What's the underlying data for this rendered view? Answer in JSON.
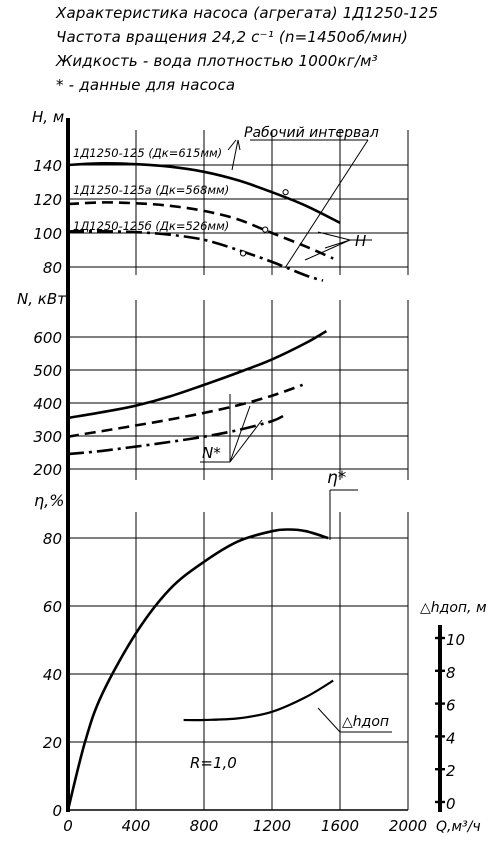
{
  "header": {
    "line1": "Характеристика насоса (агрегата) 1Д1250-125",
    "line2": "Частота вращения 24,2 с⁻¹ (n=1450об/мин)",
    "line3": "Жидкость - вода плотностью 1000кг/м³",
    "line4": "* - данные для насоса"
  },
  "labels": {
    "h_axis": "H, м",
    "n_axis": "N, кВт",
    "eta_axis": "η,%",
    "npsh_axis": "△hдоп, м",
    "x_axis": "Q,м³/ч",
    "work_interval": "Рабочий интервал",
    "curve_H_label": "H",
    "curve_N_label": "N*",
    "curve_eta_label": "η*",
    "curve_npsh_label": "△hдоп",
    "r_label": "R=1,0",
    "series_125": "1Д1250-125 (Дк=615мм)",
    "series_125a": "1Д1250-125а (Дк=568мм)",
    "series_125b": "1Д1250-125б (Дк=526мм)"
  },
  "chart_data": {
    "type": "line",
    "x_unit": "Q, м³/ч",
    "xlim": [
      0,
      2000
    ],
    "x_ticks": [
      "0",
      "400",
      "800",
      "1200",
      "1600",
      "2000"
    ],
    "grid": true,
    "work_interval": [
      1000,
      1600
    ],
    "panels": [
      {
        "quantity": "H, м",
        "ylim": [
          80,
          150
        ],
        "y_ticks": [
          "80",
          "100",
          "120",
          "140"
        ],
        "series": [
          {
            "name": "1Д1250-125 (Дк=615мм)",
            "style": "solid",
            "x": [
              0,
              200,
              400,
              600,
              800,
              1000,
              1200,
              1400,
              1600
            ],
            "y": [
              140,
              141,
              140.5,
              139,
              136,
              131,
              124,
              116,
              106
            ]
          },
          {
            "name": "1Д1250-125а (Дк=568мм)",
            "style": "dashed",
            "x": [
              0,
              200,
              400,
              600,
              800,
              1000,
              1200,
              1400,
              1560
            ],
            "y": [
              117,
              118,
              117.5,
              116,
              113,
              108,
              100,
              92,
              85
            ]
          },
          {
            "name": "1Д1250-125б (Дк=526мм)",
            "style": "dashdot",
            "x": [
              0,
              200,
              400,
              600,
              800,
              1000,
              1200,
              1400,
              1500
            ],
            "y": [
              101,
              101,
              100.5,
              99,
              96,
              90,
              83,
              75,
              72
            ]
          }
        ],
        "markers": [
          {
            "x": 1280,
            "y": 124
          },
          {
            "x": 1160,
            "y": 102
          },
          {
            "x": 1030,
            "y": 88
          }
        ]
      },
      {
        "quantity": "N, кВт",
        "ylim": [
          200,
          650
        ],
        "y_ticks": [
          "200",
          "300",
          "400",
          "500",
          "600"
        ],
        "series": [
          {
            "name": "1Д1250-125",
            "style": "solid",
            "x": [
              0,
              200,
              400,
              600,
              800,
              1000,
              1200,
              1400,
              1520
            ],
            "y": [
              355,
              372,
              392,
              420,
              455,
              492,
              532,
              582,
              618
            ]
          },
          {
            "name": "1Д1250-125а",
            "style": "dashed",
            "x": [
              0,
              200,
              400,
              600,
              800,
              1000,
              1200,
              1380
            ],
            "y": [
              298,
              315,
              332,
              350,
              370,
              393,
              422,
              455
            ]
          },
          {
            "name": "1Д1250-125б",
            "style": "dashdot",
            "x": [
              0,
              200,
              400,
              600,
              800,
              1000,
              1200,
              1280
            ],
            "y": [
              245,
              255,
              268,
              282,
              298,
              318,
              345,
              365
            ]
          }
        ]
      },
      {
        "quantity": "η, %",
        "ylim": [
          0,
          85
        ],
        "y_ticks": [
          "0",
          "20",
          "40",
          "60",
          "80"
        ],
        "series": [
          {
            "name": "η*",
            "style": "solid",
            "x": [
              0,
              100,
              200,
              400,
              600,
              800,
              1000,
              1200,
              1300,
              1400,
              1530
            ],
            "y": [
              0,
              20,
              34,
              52,
              65,
              73,
              79,
              82,
              82.5,
              82,
              80
            ]
          }
        ]
      },
      {
        "quantity": "△hдоп, м",
        "ylim": [
          0,
          10
        ],
        "y_ticks": [
          "0",
          "2",
          "4",
          "6",
          "8",
          "10"
        ],
        "series": [
          {
            "name": "△hдоп",
            "style": "solid",
            "x": [
              680,
              800,
              1000,
              1200,
              1400,
              1560
            ],
            "y": [
              5.0,
              5.0,
              5.1,
              5.5,
              6.4,
              7.4
            ]
          }
        ]
      }
    ]
  }
}
